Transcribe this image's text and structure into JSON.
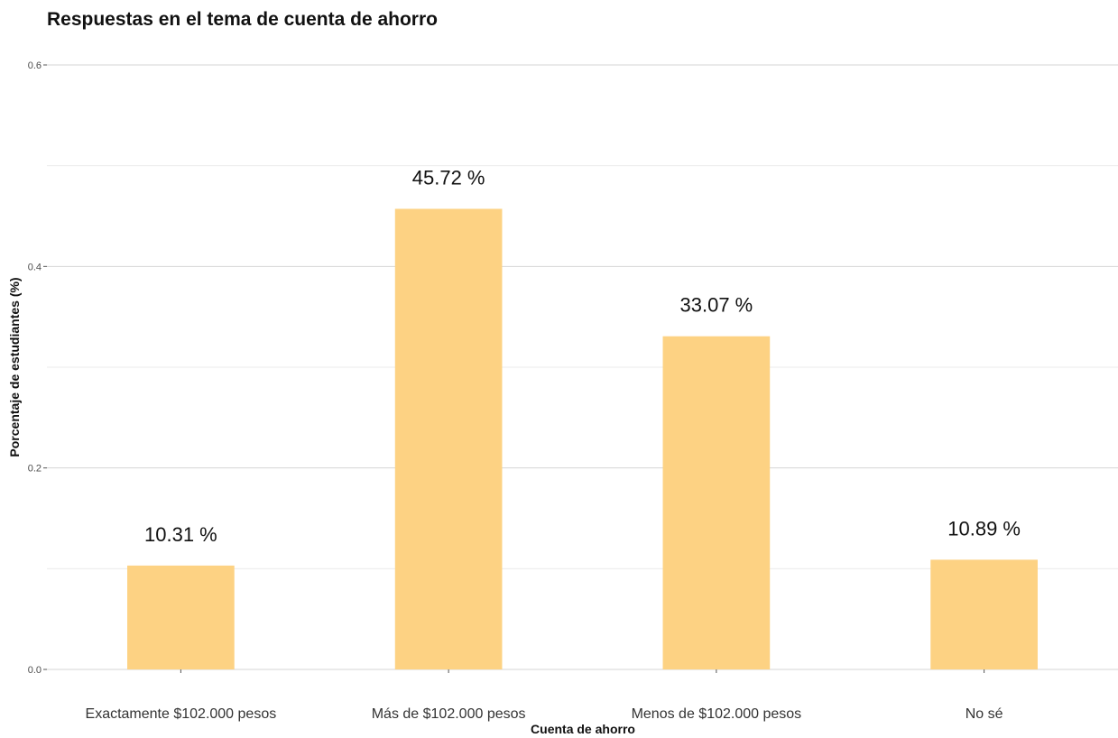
{
  "chart_data": {
    "type": "bar",
    "title": "Respuestas en el tema de cuenta de ahorro",
    "xlabel": "Cuenta de ahorro",
    "ylabel": "Porcentaje de estudiantes (%)",
    "categories": [
      "Exactamente $102.000 pesos",
      "Más de $102.000 pesos",
      "Menos de $102.000 pesos",
      "No sé"
    ],
    "values": [
      0.1031,
      0.4572,
      0.3307,
      0.1089
    ],
    "data_labels": [
      "10.31 %",
      "45.72 %",
      "33.07 %",
      "10.89 %"
    ],
    "ylim": [
      0,
      0.6
    ],
    "yticks": [
      0.0,
      0.2,
      0.4,
      0.6
    ],
    "ytick_labels": [
      "0.0",
      "0.2",
      "0.4",
      "0.6"
    ],
    "grid": true,
    "legend": "none",
    "bar_color": "#fdd283"
  }
}
